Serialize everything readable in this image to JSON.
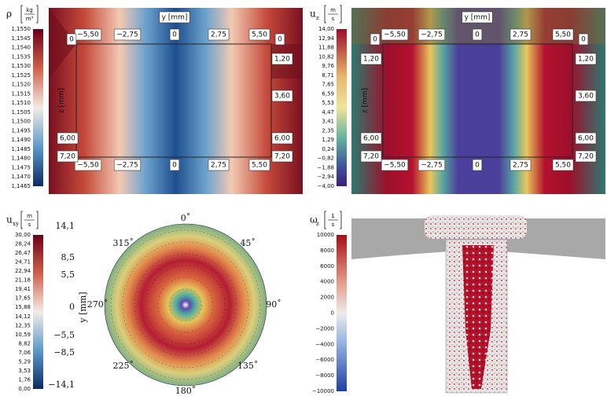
{
  "panels": [
    {
      "quantity": {
        "symbol": "ρ"
      },
      "unit": {
        "numerator": "kg",
        "denominator": "m³"
      },
      "colorbar_ticks": [
        "1,1550",
        "1,1545",
        "1,1540",
        "1,1535",
        "1,1530",
        "1,1525",
        "1,1520",
        "1,1515",
        "1,1510",
        "1,1505",
        "1,1500",
        "1,1495",
        "1,1490",
        "1,1485",
        "1,1480",
        "1,1475",
        "1,1470",
        "1,1465"
      ],
      "y_axis_label": "y [mm]",
      "z_axis_label": "z [mm]",
      "y_ticks_top": [
        "−5,50",
        "−2,75",
        "0",
        "2,75",
        "5,50"
      ],
      "y_ticks_bottom": [
        "−5,50",
        "−2,75",
        "0",
        "2,75",
        "5,50"
      ],
      "z_ticks_left": [
        "0",
        "6,00",
        "7,20"
      ],
      "z_ticks_right": [
        "0",
        "1,20",
        "3,60",
        "6,00",
        "7,20"
      ]
    },
    {
      "quantity": {
        "symbol": "u",
        "subscript": "z"
      },
      "unit": {
        "numerator": "m",
        "denominator": "s"
      },
      "colorbar_ticks": [
        "14,00",
        "12,94",
        "11,88",
        "10,82",
        "9,76",
        "8,71",
        "7,65",
        "6,59",
        "5,53",
        "4,47",
        "3,41",
        "2,35",
        "1,29",
        "0,24",
        "−0,82",
        "−1,88",
        "−2,94",
        "−4,00"
      ],
      "y_axis_label": "y [mm]",
      "z_axis_label": "z [mm]",
      "y_ticks_top": [
        "−5,50",
        "−2,75",
        "0",
        "2,75",
        "5,50"
      ],
      "y_ticks_bottom": [
        "−5,50",
        "−2,75",
        "0",
        "2,75",
        "5,50"
      ],
      "z_ticks_left": [
        "0",
        "1,20",
        "6,00",
        "7,20"
      ],
      "z_ticks_right": [
        "0",
        "1,20",
        "3,60",
        "6,00",
        "7,20"
      ]
    },
    {
      "quantity": {
        "symbol": "u",
        "subscript": "xy"
      },
      "unit": {
        "numerator": "m",
        "denominator": "s"
      },
      "colorbar_ticks": [
        "30,00",
        "28,24",
        "26,47",
        "24,71",
        "22,94",
        "21,18",
        "19,41",
        "17,65",
        "15,88",
        "14,12",
        "12,35",
        "10,59",
        "8,82",
        "7,06",
        "5,29",
        "3,53",
        "1,76",
        "0,00"
      ],
      "y_axis_label": "y [mm]",
      "y_ticks": [
        "14,1",
        "8,5",
        "5,5",
        "0",
        "−5,5",
        "−8,5",
        "−14,1"
      ],
      "angles": [
        "0˚",
        "45˚",
        "90˚",
        "135˚",
        "180˚",
        "225˚",
        "270˚",
        "315˚"
      ]
    },
    {
      "quantity": {
        "symbol": "ω",
        "subscript": "z"
      },
      "unit": {
        "numerator": "1",
        "denominator": "s"
      },
      "colorbar_ticks": [
        "10000",
        "8000",
        "6000",
        "4000",
        "2000",
        "0",
        "−2000",
        "−4000",
        "−6000",
        "−8000",
        "−10000"
      ]
    }
  ]
}
